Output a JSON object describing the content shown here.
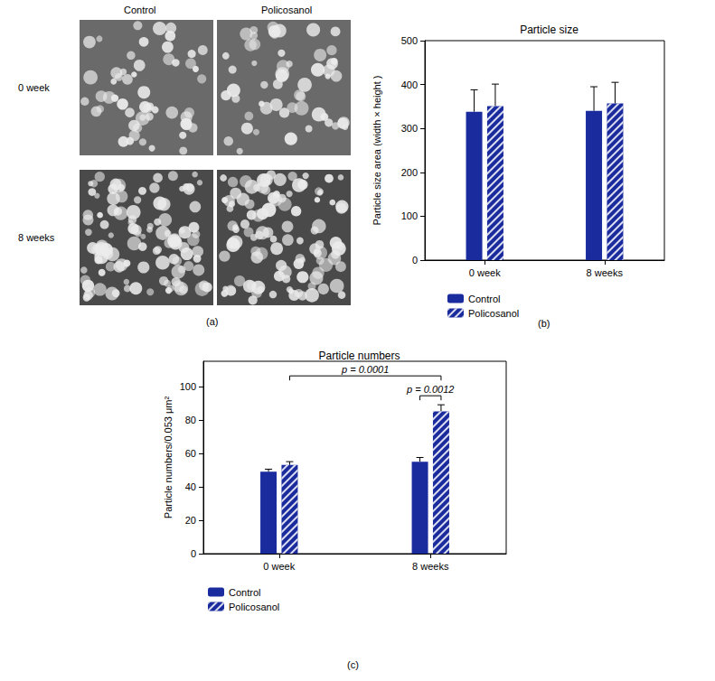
{
  "panel_a": {
    "label": "(a)",
    "columns": [
      "Control",
      "Policosanol"
    ],
    "rows": [
      "0 week",
      "8 weeks"
    ]
  },
  "chart_data": [
    {
      "panel": "(b)",
      "type": "bar",
      "title": "Particle size",
      "y_label": "Particle size area (width × height )",
      "categories": [
        "0 week",
        "8 weeks"
      ],
      "series": [
        {
          "name": "Control",
          "color": "#1a2b9e",
          "values": [
            338,
            340
          ],
          "errors": [
            50,
            55
          ]
        },
        {
          "name": "Policosanol",
          "color": "#1a2b9e",
          "values": [
            351,
            357
          ],
          "errors": [
            50,
            48
          ]
        }
      ],
      "ylim": [
        0,
        500
      ],
      "yticks": [
        0,
        100,
        200,
        300,
        400,
        500
      ],
      "grid": false,
      "legend": "bottom left"
    },
    {
      "panel": "(c)",
      "type": "bar",
      "title": "Particle numbers",
      "y_label": "Particle numbers/0.053 μm²",
      "categories": [
        "0 week",
        "8 weeks"
      ],
      "series": [
        {
          "name": "Control",
          "color": "#1a2b9e",
          "values": [
            49,
            55
          ],
          "errors": [
            1.5,
            2.5
          ]
        },
        {
          "name": "Policosanol",
          "color": "#1a2b9e",
          "values": [
            53,
            85
          ],
          "errors": [
            2,
            4
          ]
        }
      ],
      "ylim": [
        0,
        115
      ],
      "yticks": [
        0,
        20,
        40,
        60,
        80,
        100
      ],
      "grid": false,
      "legend": "bottom left",
      "annotations": [
        {
          "text": "p = 0.0001",
          "from": {
            "series": "Policosanol",
            "category": "0 week"
          },
          "to": {
            "series": "Policosanol",
            "category": "8 weeks"
          }
        },
        {
          "text": "p = 0.0012",
          "from": {
            "series": "Control",
            "category": "8 weeks"
          },
          "to": {
            "series": "Policosanol",
            "category": "8 weeks"
          }
        }
      ]
    }
  ]
}
